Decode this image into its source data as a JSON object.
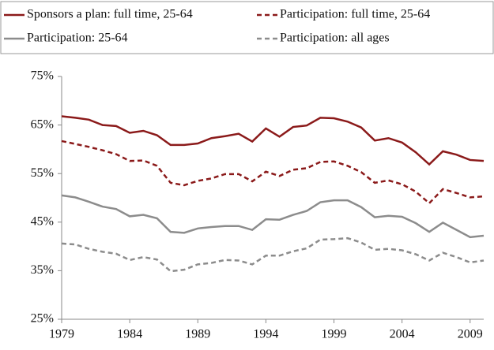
{
  "chart_data": {
    "type": "line",
    "x": [
      1979,
      1980,
      1981,
      1982,
      1983,
      1984,
      1985,
      1986,
      1987,
      1988,
      1989,
      1990,
      1991,
      1992,
      1993,
      1994,
      1995,
      1996,
      1997,
      1998,
      1999,
      2000,
      2001,
      2002,
      2003,
      2004,
      2005,
      2006,
      2007,
      2008,
      2009,
      2010
    ],
    "xlim": [
      1979,
      2010
    ],
    "xticks": [
      1979,
      1984,
      1989,
      1994,
      1999,
      2004,
      2009
    ],
    "ylim": [
      25,
      75
    ],
    "yticks": [
      {
        "value": 25,
        "label": "25%"
      },
      {
        "value": 35,
        "label": "35%"
      },
      {
        "value": 45,
        "label": "45%"
      },
      {
        "value": 55,
        "label": "55%"
      },
      {
        "value": 65,
        "label": "65%"
      },
      {
        "value": 75,
        "label": "75%"
      }
    ],
    "legend": "top",
    "series": [
      {
        "name": "Sponsors a plan: full time, 25-64",
        "color": "#8b1a1a",
        "dash": false,
        "values": [
          66.8,
          66.5,
          66.1,
          65.0,
          64.8,
          63.4,
          63.8,
          62.9,
          60.9,
          60.9,
          61.2,
          62.3,
          62.7,
          63.2,
          61.6,
          64.3,
          62.6,
          64.6,
          64.9,
          66.5,
          66.4,
          65.7,
          64.5,
          61.8,
          62.3,
          61.4,
          59.4,
          56.9,
          59.6,
          58.9,
          57.8,
          57.6
        ]
      },
      {
        "name": "Participation: full time, 25-64",
        "color": "#8b1a1a",
        "dash": true,
        "values": [
          61.7,
          61.1,
          60.5,
          59.8,
          59.0,
          57.6,
          57.7,
          56.6,
          53.1,
          52.6,
          53.5,
          54.0,
          54.9,
          54.9,
          53.4,
          55.4,
          54.5,
          55.8,
          56.1,
          57.4,
          57.5,
          56.6,
          55.3,
          53.1,
          53.6,
          52.8,
          51.3,
          48.9,
          51.8,
          51.0,
          50.1,
          50.3
        ]
      },
      {
        "name": "Participation: 25-64",
        "color": "#8c8c8c",
        "dash": false,
        "values": [
          50.5,
          50.1,
          49.2,
          48.2,
          47.7,
          46.2,
          46.5,
          45.8,
          43.0,
          42.8,
          43.7,
          44.0,
          44.2,
          44.2,
          43.4,
          45.6,
          45.5,
          46.5,
          47.3,
          49.1,
          49.5,
          49.5,
          48.1,
          46.0,
          46.3,
          46.1,
          44.8,
          43.0,
          44.9,
          43.4,
          41.9,
          42.2
        ]
      },
      {
        "name": "Participation: all ages",
        "color": "#8c8c8c",
        "dash": true,
        "values": [
          40.6,
          40.4,
          39.5,
          38.9,
          38.5,
          37.2,
          37.8,
          37.3,
          34.9,
          35.2,
          36.3,
          36.6,
          37.2,
          37.1,
          36.3,
          38.1,
          38.1,
          39.0,
          39.6,
          41.4,
          41.5,
          41.7,
          40.8,
          39.3,
          39.5,
          39.2,
          38.4,
          37.1,
          38.7,
          37.8,
          36.7,
          37.1
        ]
      }
    ]
  }
}
